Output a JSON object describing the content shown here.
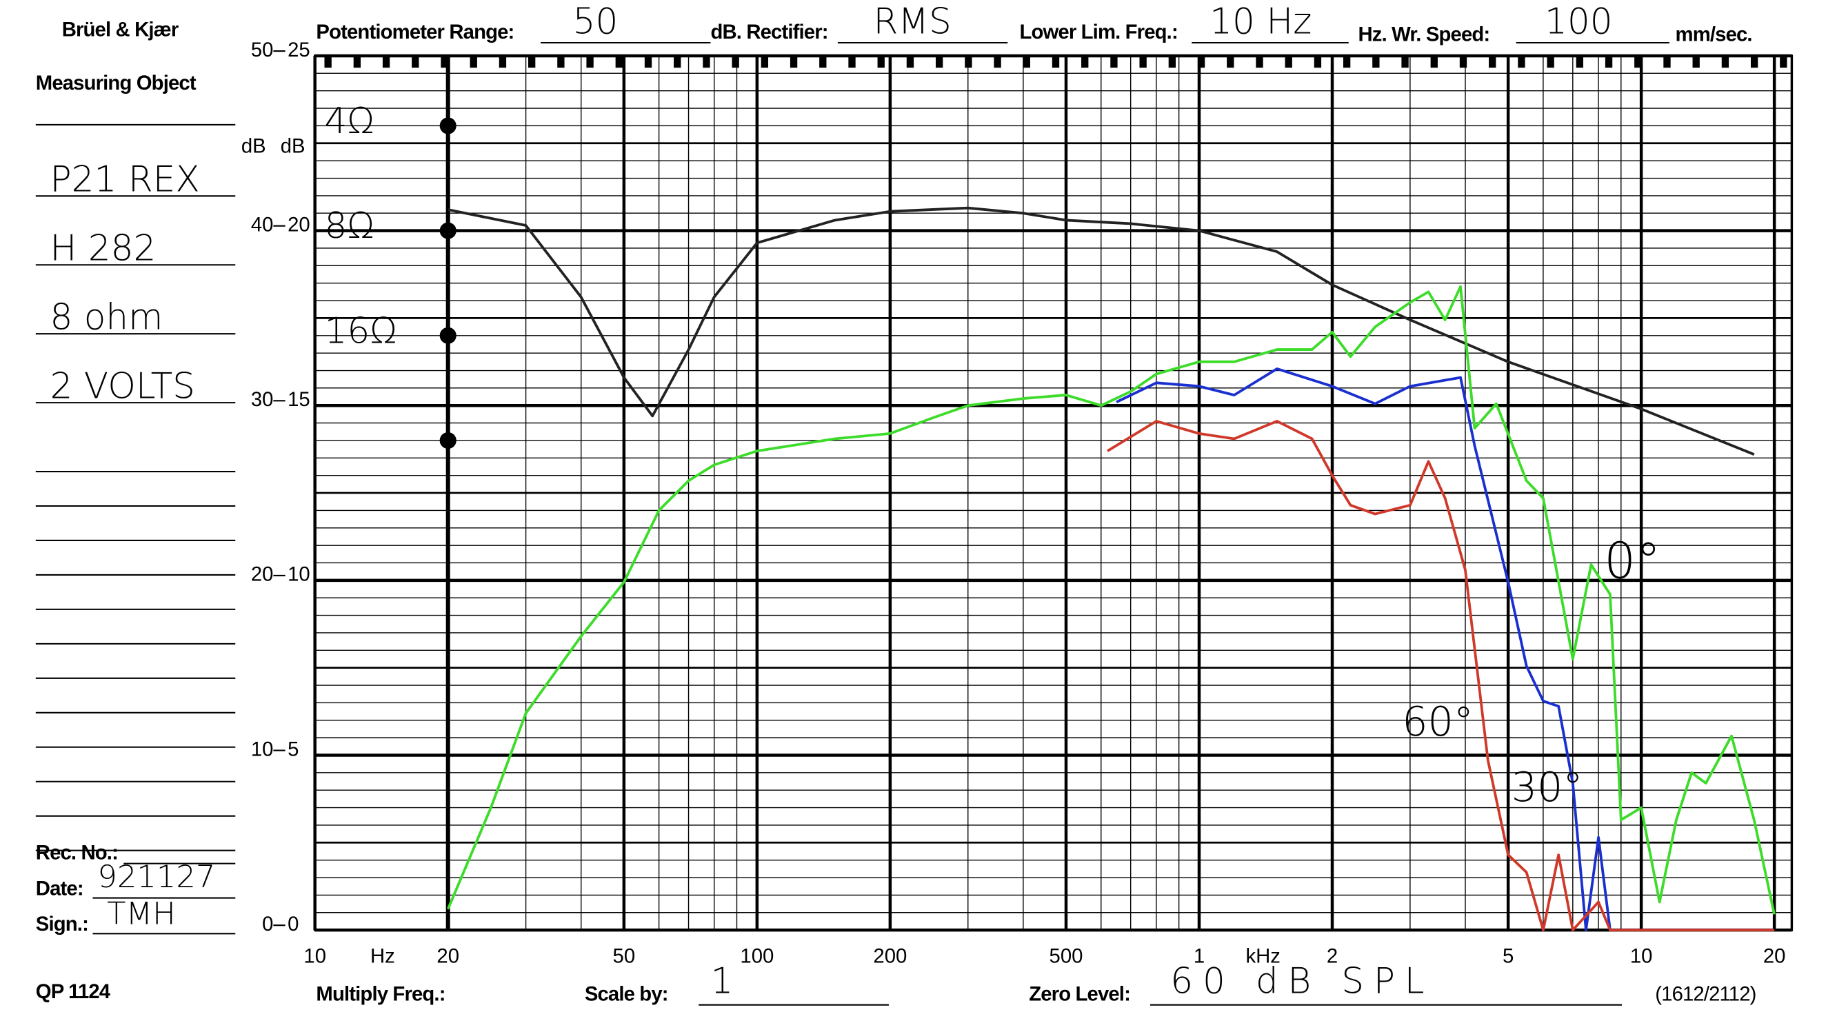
{
  "form": {
    "brand": "Brüel & Kjær",
    "measuring_object_label": "Measuring Object",
    "object_lines": [
      "P21 REX",
      "H 282",
      "8 ohm",
      "2 VOLTS"
    ],
    "potentiometer_label": "Potentiometer Range:",
    "potentiometer_value": "50",
    "rectifier_label": "dB. Rectifier:",
    "rectifier_value": "RMS",
    "lower_lim_label": "Lower Lim. Freq.:",
    "lower_lim_value": "10 Hz",
    "speed_label": "Hz. Wr. Speed:",
    "speed_value": "100",
    "speed_unit": "mm/sec.",
    "rec_no_label": "Rec. No.:",
    "date_label": "Date:",
    "date_value": "921127",
    "sign_label": "Sign.:",
    "sign_value": "TMH",
    "form_code": "QP 1124",
    "multiply_label": "Multiply Freq.:",
    "scale_label": "Scale by:",
    "scale_value": "1",
    "zero_label": "Zero Level:",
    "zero_value": "60 dB SPL",
    "paper_code": "(1612/2112)"
  },
  "chart_data": {
    "type": "line",
    "log_x": true,
    "grid": true,
    "xlim": [
      10,
      21900
    ],
    "xticks": [
      10,
      20,
      50,
      100,
      200,
      500,
      {
        "value": 1000,
        "label": "1"
      },
      {
        "value": 2000,
        "label": "2"
      },
      {
        "value": 5000,
        "label": "5"
      },
      {
        "value": 10000,
        "label": "10"
      },
      {
        "value": 20000,
        "label": "20"
      }
    ],
    "x_unit_low": "Hz",
    "x_unit_high": "kHz",
    "ylim": [
      0,
      50
    ],
    "yticks": [
      0,
      10,
      20,
      30,
      40,
      50
    ],
    "y2lim": [
      0,
      25
    ],
    "y2ticks": [
      0,
      5,
      10,
      15,
      20,
      25
    ],
    "ylabel": "dB",
    "y2label": "dB",
    "impedance_marks": {
      "x": 20,
      "values": [
        46,
        40,
        34,
        28
      ],
      "labels": [
        "4Ω",
        "8Ω",
        "16Ω",
        null
      ]
    },
    "series": [
      {
        "color": "#222222",
        "x": [
          20,
          30,
          40,
          50,
          58,
          70,
          80,
          100,
          150,
          200,
          300,
          400,
          500,
          700,
          1000,
          1500,
          2000,
          3000,
          5000,
          10000,
          18000
        ],
        "values": [
          41.2,
          40.3,
          36.2,
          31.6,
          29.4,
          33.2,
          36.2,
          39.3,
          40.6,
          41.1,
          41.3,
          41.0,
          40.6,
          40.4,
          40.0,
          38.8,
          36.9,
          34.9,
          32.5,
          29.8,
          27.2
        ]
      },
      {
        "name": "0°",
        "color": "#3ddc2a",
        "x": [
          20,
          25,
          30,
          40,
          50,
          60,
          70,
          80,
          100,
          150,
          200,
          250,
          300,
          400,
          500,
          600,
          700,
          800,
          1000,
          1200,
          1500,
          1800,
          2000,
          2200,
          2500,
          3000,
          3300,
          3600,
          3900,
          4200,
          4700,
          5500,
          6000,
          7000,
          7700,
          8500,
          9000,
          10000,
          11000,
          12000,
          13000,
          14000,
          16000,
          18000,
          20000
        ],
        "values": [
          1.2,
          7.0,
          12.4,
          16.8,
          19.9,
          24.0,
          25.7,
          26.6,
          27.4,
          28.1,
          28.4,
          29.3,
          30.0,
          30.4,
          30.6,
          30.0,
          30.8,
          31.8,
          32.5,
          32.5,
          33.2,
          33.2,
          34.2,
          32.8,
          34.5,
          35.9,
          36.5,
          34.9,
          36.8,
          28.7,
          30.1,
          25.7,
          24.7,
          15.5,
          20.9,
          19.2,
          6.3,
          7.0,
          1.6,
          6.3,
          9.0,
          8.4,
          11.1,
          6.3,
          0.9
        ]
      },
      {
        "name": "30°",
        "color": "#1a2fd0",
        "x": [
          650,
          800,
          1000,
          1200,
          1500,
          2000,
          2500,
          3000,
          3900,
          4200,
          5000,
          5500,
          6000,
          6500,
          7000,
          7500,
          8000,
          8500,
          10000,
          20000
        ],
        "values": [
          30.2,
          31.3,
          31.1,
          30.6,
          32.1,
          31.1,
          30.1,
          31.1,
          31.6,
          27.7,
          19.9,
          15.1,
          13.1,
          12.8,
          8.4,
          0,
          5.3,
          0,
          0,
          0
        ]
      },
      {
        "name": "60°",
        "color": "#d0392a",
        "x": [
          620,
          800,
          1000,
          1200,
          1500,
          1800,
          2000,
          2200,
          2500,
          3000,
          3300,
          3600,
          4000,
          4500,
          5000,
          5500,
          6000,
          6500,
          7000,
          8000,
          8500,
          20000
        ],
        "values": [
          27.4,
          29.1,
          28.4,
          28.1,
          29.1,
          28.1,
          26.0,
          24.3,
          23.8,
          24.3,
          26.8,
          24.7,
          20.6,
          9.7,
          4.3,
          3.3,
          0,
          4.3,
          0,
          1.6,
          0,
          0
        ]
      }
    ]
  }
}
